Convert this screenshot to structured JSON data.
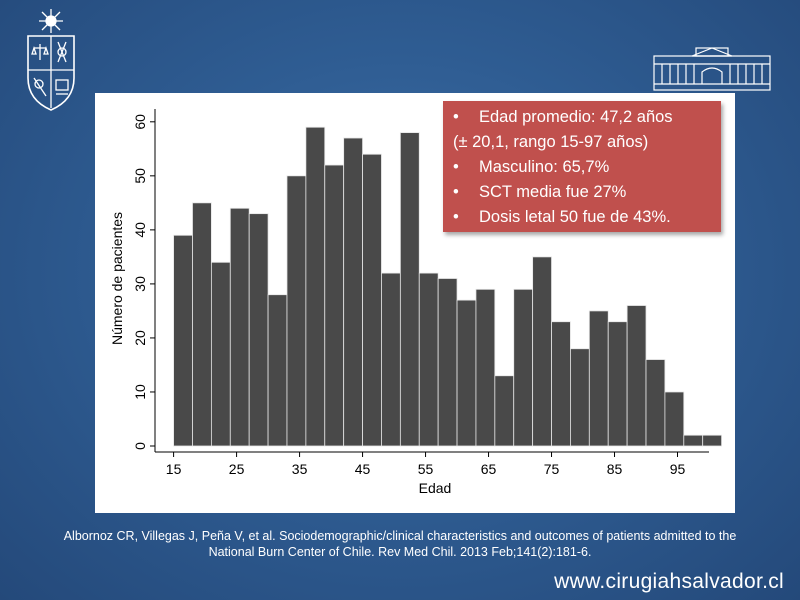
{
  "chart_data": {
    "type": "bar",
    "xlabel": "Edad",
    "ylabel": "Número de pacientes",
    "x_ticks": [
      15,
      25,
      35,
      45,
      55,
      65,
      75,
      85,
      95
    ],
    "y_ticks": [
      0,
      10,
      20,
      30,
      40,
      50,
      60
    ],
    "xlim": [
      13,
      100
    ],
    "ylim": [
      0,
      62
    ],
    "bin_width": 3,
    "bins": [
      {
        "start": 15,
        "value": 39
      },
      {
        "start": 18,
        "value": 45
      },
      {
        "start": 21,
        "value": 34
      },
      {
        "start": 24,
        "value": 44
      },
      {
        "start": 27,
        "value": 43
      },
      {
        "start": 30,
        "value": 28
      },
      {
        "start": 33,
        "value": 50
      },
      {
        "start": 36,
        "value": 59
      },
      {
        "start": 39,
        "value": 52
      },
      {
        "start": 42,
        "value": 57
      },
      {
        "start": 45,
        "value": 54
      },
      {
        "start": 48,
        "value": 32
      },
      {
        "start": 51,
        "value": 58
      },
      {
        "start": 54,
        "value": 32
      },
      {
        "start": 57,
        "value": 31
      },
      {
        "start": 60,
        "value": 27
      },
      {
        "start": 63,
        "value": 29
      },
      {
        "start": 66,
        "value": 13
      },
      {
        "start": 69,
        "value": 29
      },
      {
        "start": 72,
        "value": 35
      },
      {
        "start": 75,
        "value": 23
      },
      {
        "start": 78,
        "value": 18
      },
      {
        "start": 81,
        "value": 25
      },
      {
        "start": 84,
        "value": 23
      },
      {
        "start": 87,
        "value": 26
      },
      {
        "start": 90,
        "value": 16
      },
      {
        "start": 93,
        "value": 10
      },
      {
        "start": 96,
        "value": 2
      },
      {
        "start": 99,
        "value": 2
      }
    ],
    "grid": false,
    "bar_color": "#494949"
  },
  "info_box": {
    "lines": [
      {
        "bullet": "•",
        "text": "Edad promedio: 47,2 años"
      },
      {
        "bullet": "",
        "text": "(± 20,1, rango 15-97 años)"
      },
      {
        "bullet": "•",
        "text": "Masculino: 65,7%"
      },
      {
        "bullet": "•",
        "text": "SCT media fue 27%"
      },
      {
        "bullet": "•",
        "text": "Dosis letal 50 fue de 43%."
      }
    ],
    "color": "#c0504d"
  },
  "citation": {
    "line1": "Albornoz CR, Villegas J, Peña V, et al. Sociodemographic/clinical characteristics and outcomes of patients admitted to the",
    "line2": "National Burn Center of Chile. Rev Med Chil. 2013 Feb;141(2):181-6."
  },
  "footer": {
    "url": "www.cirugiahsalvador.cl"
  },
  "logos": {
    "left": "university-crest-icon",
    "right": "building-facade-icon"
  }
}
